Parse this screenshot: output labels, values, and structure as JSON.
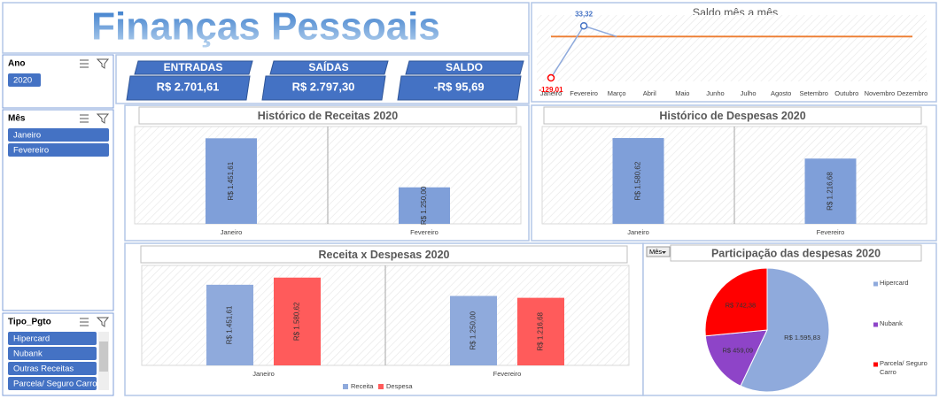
{
  "header": {
    "title": "Finanças Pessoais"
  },
  "slicers": [
    {
      "title": "Ano",
      "items": [
        "2020"
      ]
    },
    {
      "title": "Mês",
      "items": [
        "Janeiro",
        "Fevereiro"
      ]
    },
    {
      "title": "Tipo_Pgto",
      "items": [
        "Hipercard",
        "Nubank",
        "Outras Receitas",
        "Parcela/ Seguro Carro"
      ]
    }
  ],
  "kpis": [
    {
      "label": "ENTRADAS",
      "value": "R$ 2.701,61"
    },
    {
      "label": "SAÍDAS",
      "value": "R$ 2.797,30"
    },
    {
      "label": "SALDO",
      "value": "-R$ 95,69"
    }
  ],
  "chart_data": [
    {
      "type": "line",
      "title": "Saldo mês a mês",
      "categories": [
        "Janeiro",
        "Fevereiro",
        "Março",
        "Abril",
        "Maio",
        "Junho",
        "Julho",
        "Agosto",
        "Setembro",
        "Outubro",
        "Novembro",
        "Dezembro"
      ],
      "series": [
        {
          "color": "#8faadc",
          "values": [
            -129.01,
            33.32,
            0,
            null,
            null,
            null,
            null,
            null,
            null,
            null,
            null,
            null
          ],
          "value_labels": [
            "-129,01",
            "33,32",
            null,
            null,
            null,
            null,
            null,
            null,
            null,
            null,
            null,
            null
          ]
        },
        {
          "color": "#ed7d31",
          "values": [
            0,
            0,
            0,
            0,
            0,
            0,
            0,
            0,
            0,
            0,
            0,
            0
          ]
        }
      ],
      "negative_color": "#ff0000",
      "ylim": [
        -140,
        45
      ]
    },
    {
      "type": "bar",
      "title": "Histórico de Receitas 2020",
      "categories": [
        "Janeiro",
        "Fevereiro"
      ],
      "values": [
        1451.61,
        1250.0
      ],
      "value_labels": [
        "R$ 1.451,61",
        "R$ 1.250,00"
      ],
      "color": "#7f9fd9",
      "ylim": [
        1100,
        1500
      ]
    },
    {
      "type": "bar",
      "title": "Histórico de Despesas 2020",
      "categories": [
        "Janeiro",
        "Fevereiro"
      ],
      "values": [
        1580.62,
        1216.68
      ],
      "value_labels": [
        "R$ 1.580,62",
        "R$ 1.216,68"
      ],
      "color": "#7f9fd9",
      "ylim": [
        60,
        1785
      ]
    },
    {
      "type": "bar",
      "title": "Receita x Despesas 2020",
      "categories": [
        "Janeiro",
        "Fevereiro"
      ],
      "series": [
        {
          "name": "Receita",
          "color": "#8faadc",
          "values": [
            1451.61,
            1250.0
          ],
          "value_labels": [
            "R$ 1.451,61",
            "R$ 1.250,00"
          ]
        },
        {
          "name": "Despesa",
          "color": "#ff5b5b",
          "values": [
            1580.62,
            1216.68
          ],
          "value_labels": [
            "R$ 1.580,62",
            "R$ 1.216,68"
          ]
        }
      ],
      "ylim": [
        0,
        1800
      ]
    },
    {
      "type": "pie",
      "title": "Participação das despesas 2020",
      "field_button": "Mês",
      "categories": [
        "Hipercard",
        "Nubank",
        "Parcela/ Seguro Carro"
      ],
      "values": [
        1595.83,
        459.09,
        742.38
      ],
      "value_labels": [
        "R$ 1.595,83",
        "R$ 459,09",
        "R$ 742,38"
      ],
      "colors": [
        "#8faadc",
        "#8e44c8",
        "#ff0000"
      ]
    }
  ]
}
